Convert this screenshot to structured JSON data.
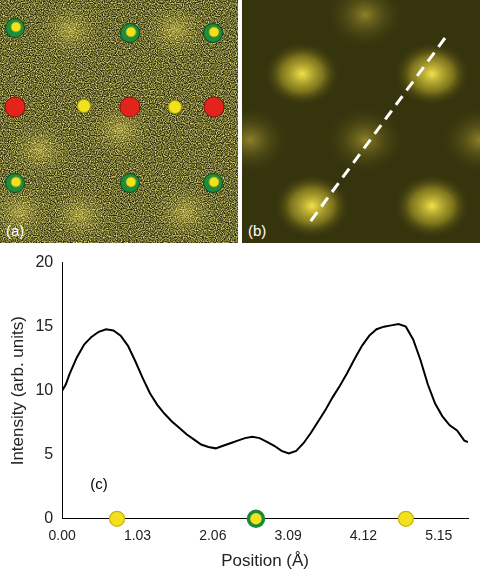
{
  "panels": [
    {
      "label": "(a)"
    },
    {
      "label": "(b)"
    }
  ],
  "chart_data": {
    "type": "line",
    "panel_label": "(c)",
    "x_label": "Position (Å)",
    "y_label": "Intensity (arb. units)",
    "color": "#000000",
    "x": [
      0.0,
      0.05,
      0.1,
      0.2,
      0.3,
      0.4,
      0.5,
      0.6,
      0.7,
      0.8,
      0.9,
      1.0,
      1.1,
      1.2,
      1.3,
      1.4,
      1.5,
      1.6,
      1.7,
      1.8,
      1.9,
      2.0,
      2.1,
      2.2,
      2.3,
      2.4,
      2.5,
      2.6,
      2.7,
      2.8,
      2.9,
      3.0,
      3.1,
      3.2,
      3.3,
      3.4,
      3.5,
      3.6,
      3.7,
      3.8,
      3.9,
      4.0,
      4.1,
      4.2,
      4.3,
      4.4,
      4.5,
      4.6,
      4.7,
      4.8,
      4.9,
      5.0,
      5.1,
      5.2,
      5.3,
      5.4,
      5.5,
      5.55
    ],
    "values": [
      10.0,
      10.5,
      11.3,
      12.6,
      13.6,
      14.2,
      14.6,
      14.8,
      14.7,
      14.3,
      13.5,
      12.3,
      11.0,
      9.8,
      8.9,
      8.2,
      7.6,
      7.1,
      6.6,
      6.2,
      5.8,
      5.6,
      5.5,
      5.7,
      5.9,
      6.1,
      6.3,
      6.4,
      6.3,
      6.0,
      5.7,
      5.3,
      5.1,
      5.3,
      5.9,
      6.7,
      7.6,
      8.5,
      9.5,
      10.4,
      11.4,
      12.5,
      13.5,
      14.3,
      14.8,
      15.0,
      15.1,
      15.2,
      15.0,
      14.0,
      12.4,
      10.5,
      9.0,
      8.0,
      7.3,
      6.9,
      6.1,
      6.0
    ],
    "markers": {
      "type": "scatter",
      "x": [
        0.75,
        2.65,
        4.7
      ],
      "values": [
        0,
        0,
        0
      ],
      "colors": [
        "#c8b010",
        "#1a8a3a",
        "#c8b010"
      ]
    },
    "xlim": [
      0,
      5.55
    ],
    "xticks": [
      {
        "value": 0,
        "label": "0.00"
      },
      1.03,
      2.06,
      3.09,
      4.12,
      5.15
    ],
    "ylim": [
      0,
      20
    ],
    "yticks": [
      0,
      5,
      10,
      15,
      20
    ],
    "grid": false
  }
}
